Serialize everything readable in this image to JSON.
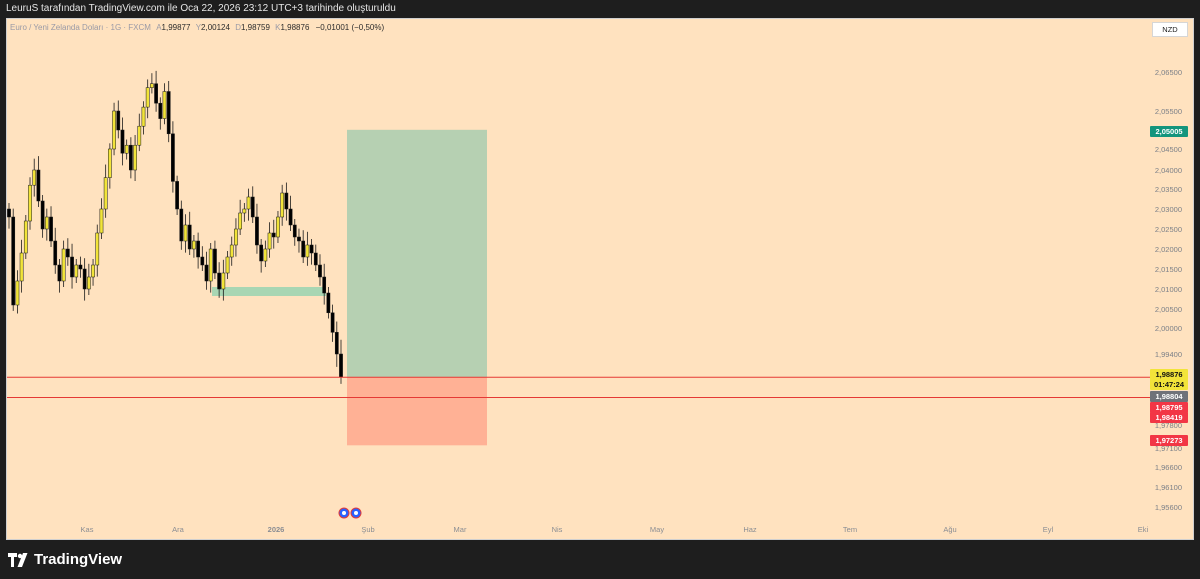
{
  "header": {
    "attribution": "LeuruS tarafından TradingView.com ile Oca 22, 2026 23:12 UTC+3 tarihinde oluşturuldu"
  },
  "legend": {
    "symbol": "Euro / Yeni Zelanda Doları · 1G · FXCM",
    "o_label": "A",
    "o": "1,99877",
    "h_label": "Y",
    "h": "2,00124",
    "l_label": "D",
    "l": "1,98759",
    "c_label": "K",
    "c": "1,98876",
    "change": "−0,01001 (−0,50%)"
  },
  "currency_button": "NZD",
  "brand": "TradingView",
  "colors": {
    "background": "#ffe2bf",
    "candle_up": "#f2e43a",
    "candle_down": "#000000",
    "target_zone": "#b6d0b2",
    "stop_zone": "#ffb195",
    "demand_zone": "#a8d6b3",
    "level_line": "#e53935",
    "price_badge": "#f2e43a",
    "target_badge": "#13957d",
    "stop_badge": "#f23645",
    "mid_badge": "#6f7279"
  },
  "chart_data": {
    "type": "candlestick",
    "y_axis_labels": [
      "2,06500",
      "2,05500",
      "2,04500",
      "2,04000",
      "2,03500",
      "2,03000",
      "2,02500",
      "2,02000",
      "2,01500",
      "2,01000",
      "2,00500",
      "2,00000",
      "1,99400",
      "1,97800",
      "1,97100",
      "1,96600",
      "1,96100",
      "1,95600"
    ],
    "y_axis_values": [
      2.065,
      2.055,
      2.045,
      2.04,
      2.035,
      2.03,
      2.025,
      2.02,
      2.015,
      2.01,
      2.005,
      2.0,
      1.994,
      1.978,
      1.971,
      1.966,
      1.961,
      1.956
    ],
    "x_axis_labels": [
      "Kas",
      "Ara",
      "2026",
      "Şub",
      "Mar",
      "Nis",
      "May",
      "Haz",
      "Tem",
      "Ağu",
      "Eyl",
      "Eki"
    ],
    "price_badges": [
      {
        "value": "2,05005",
        "role": "target"
      },
      {
        "value": "1,98876",
        "role": "last"
      },
      {
        "value": "01:47:24",
        "role": "countdown"
      },
      {
        "value": "1,98804",
        "role": "mid"
      },
      {
        "value": "1,98795",
        "role": "stop"
      },
      {
        "value": "1,98419",
        "role": "stop"
      },
      {
        "value": "1,97273",
        "role": "stop"
      }
    ],
    "horizontal_levels": [
      1.98876,
      1.98419
    ],
    "position": {
      "type": "long",
      "entry": 1.98876,
      "target": 2.05005,
      "stop": 1.97273,
      "start": "2026-01-22",
      "end": "2026-03-31"
    },
    "demand_zone": {
      "top": 2.0105,
      "bottom": 2.0085
    },
    "candles_close": [
      2.028,
      2.006,
      2.012,
      2.019,
      2.027,
      2.036,
      2.04,
      2.032,
      2.025,
      2.028,
      2.022,
      2.016,
      2.012,
      2.02,
      2.018,
      2.013,
      2.016,
      2.015,
      2.01,
      2.013,
      2.016,
      2.024,
      2.03,
      2.038,
      2.045,
      2.055,
      2.05,
      2.044,
      2.046,
      2.04,
      2.046,
      2.051,
      2.056,
      2.061,
      2.062,
      2.057,
      2.053,
      2.06,
      2.049,
      2.037,
      2.03,
      2.022,
      2.026,
      2.02,
      2.022,
      2.018,
      2.016,
      2.012,
      2.02,
      2.014,
      2.01,
      2.014,
      2.018,
      2.021,
      2.025,
      2.029,
      2.03,
      2.033,
      2.028,
      2.021,
      2.017,
      2.02,
      2.024,
      2.023,
      2.028,
      2.034,
      2.03,
      2.026,
      2.023,
      2.022,
      2.018,
      2.021,
      2.019,
      2.016,
      2.013,
      2.009,
      2.004,
      1.999,
      1.994,
      1.98876
    ]
  }
}
